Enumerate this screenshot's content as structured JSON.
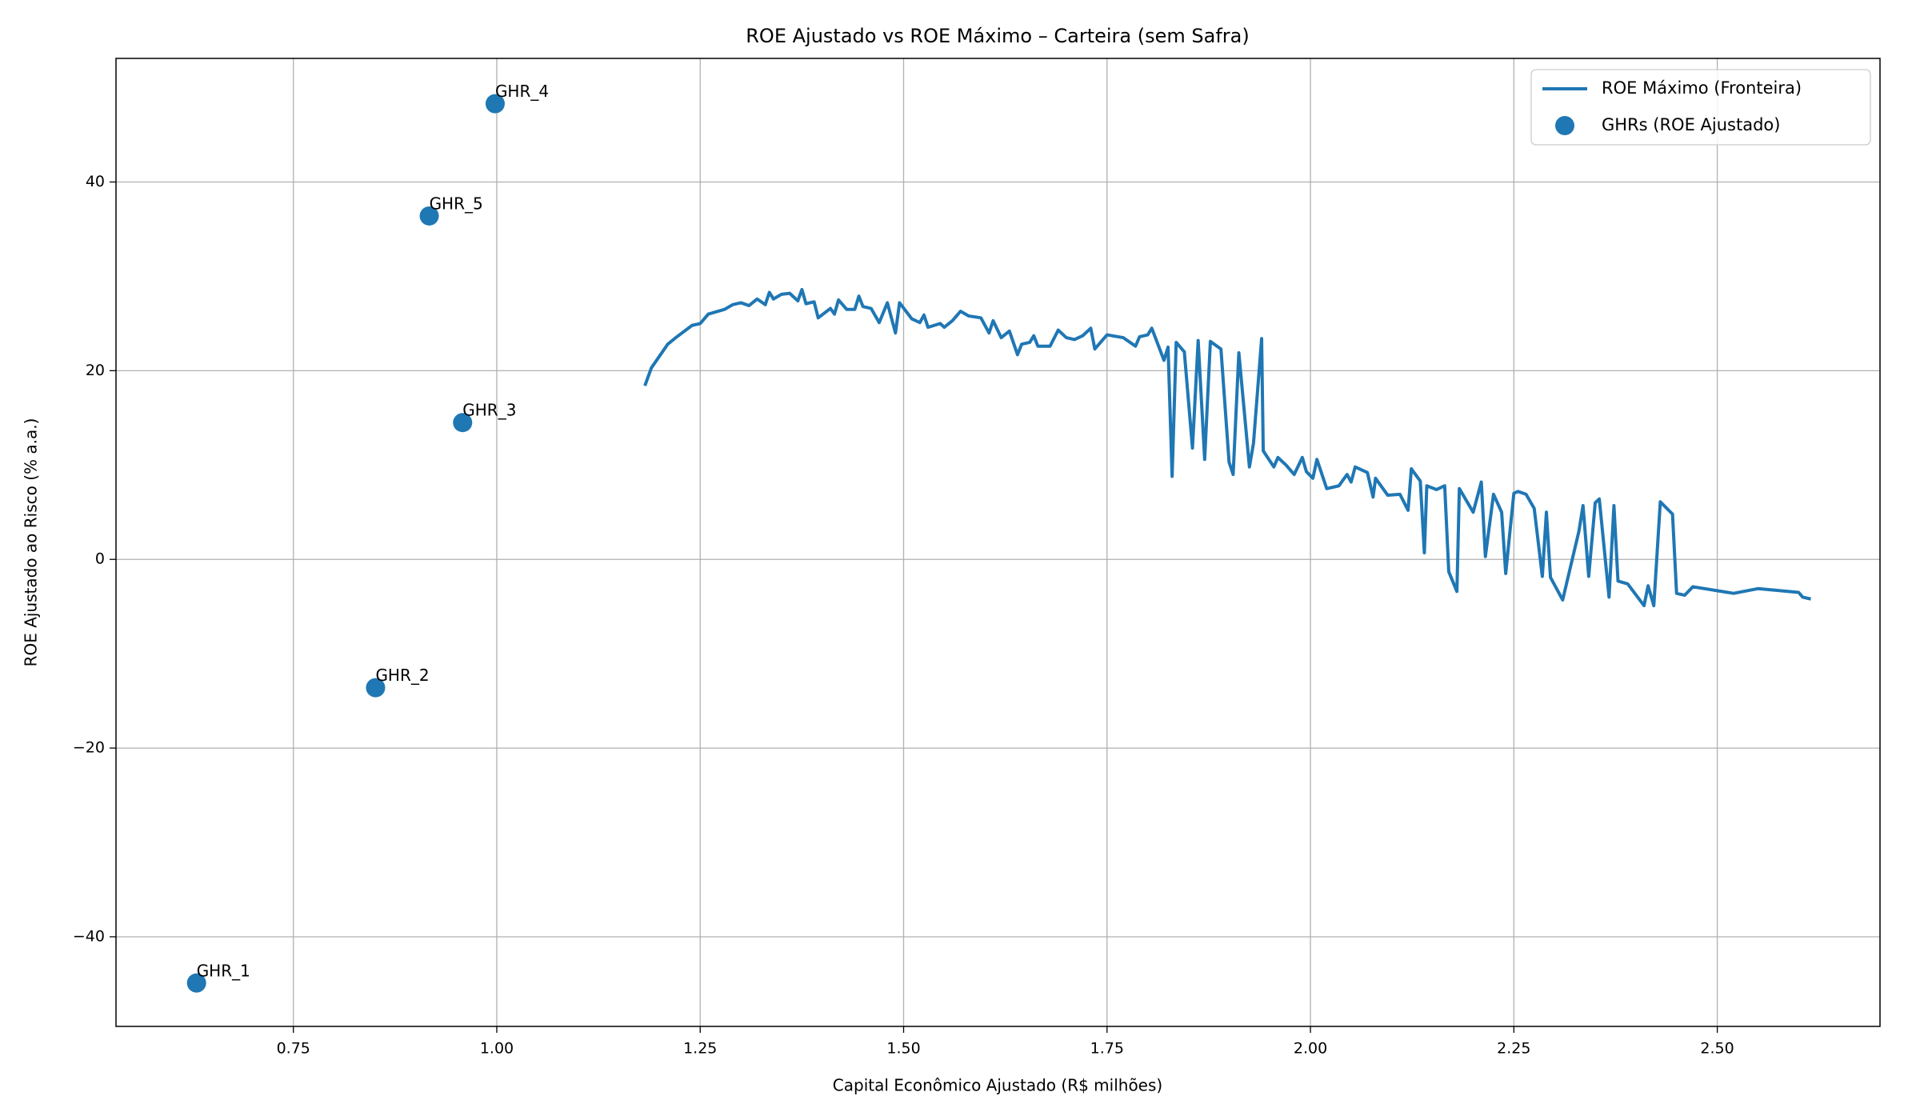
{
  "chart_data": {
    "type": "scatter",
    "title": "ROE Ajustado vs ROE Máximo – Carteira (sem Safra)",
    "xlabel": "Capital Econômico Ajustado (R$ milhões)",
    "ylabel": "ROE Ajustado ao Risco (% a.a.)",
    "xlim": [
      0.532,
      2.7
    ],
    "ylim": [
      -49.5,
      53.1
    ],
    "xticks": [
      {
        "value": 0.75,
        "label": "0.75"
      },
      {
        "value": 1,
        "label": "1.00"
      },
      {
        "value": 1.25,
        "label": "1.25"
      },
      {
        "value": 1.5,
        "label": "1.50"
      },
      {
        "value": 1.75,
        "label": "1.75"
      },
      {
        "value": 2,
        "label": "2.00"
      },
      {
        "value": 2.25,
        "label": "2.25"
      },
      {
        "value": 2.5,
        "label": "2.50"
      }
    ],
    "yticks": [
      {
        "value": -40,
        "label": "−40"
      },
      {
        "value": -20,
        "label": "−20"
      },
      0,
      20,
      40
    ],
    "grid": true,
    "legend": "upper right",
    "series": [
      {
        "name": "ROE Máximo (Fronteira)",
        "type": "line",
        "color": "#1f77b4",
        "x": [
          1.182,
          1.19,
          1.21,
          1.22,
          1.24,
          1.25,
          1.26,
          1.28,
          1.29,
          1.3,
          1.31,
          1.32,
          1.33,
          1.335,
          1.34,
          1.35,
          1.36,
          1.37,
          1.375,
          1.38,
          1.39,
          1.395,
          1.41,
          1.415,
          1.42,
          1.43,
          1.44,
          1.445,
          1.45,
          1.46,
          1.47,
          1.48,
          1.49,
          1.495,
          1.51,
          1.52,
          1.525,
          1.53,
          1.545,
          1.55,
          1.56,
          1.57,
          1.58,
          1.595,
          1.605,
          1.61,
          1.62,
          1.63,
          1.64,
          1.645,
          1.655,
          1.66,
          1.665,
          1.68,
          1.69,
          1.7,
          1.71,
          1.72,
          1.73,
          1.735,
          1.75,
          1.77,
          1.785,
          1.79,
          1.8,
          1.805,
          1.82,
          1.825,
          1.83,
          1.835,
          1.845,
          1.855,
          1.862,
          1.87,
          1.877,
          1.89,
          1.9,
          1.905,
          1.912,
          1.925,
          1.93,
          1.94,
          1.942,
          1.955,
          1.96,
          1.97,
          1.98,
          1.99,
          1.995,
          2.003,
          2.008,
          2.02,
          2.035,
          2.045,
          2.05,
          2.055,
          2.07,
          2.077,
          2.08,
          2.095,
          2.11,
          2.12,
          2.124,
          2.135,
          2.14,
          2.143,
          2.155,
          2.165,
          2.17,
          2.18,
          2.183,
          2.2,
          2.21,
          2.215,
          2.225,
          2.235,
          2.24,
          2.245,
          2.25,
          2.255,
          2.265,
          2.275,
          2.285,
          2.29,
          2.295,
          2.31,
          2.33,
          2.335,
          2.342,
          2.35,
          2.355,
          2.367,
          2.373,
          2.378,
          2.39,
          2.41,
          2.415,
          2.422,
          2.43,
          2.445,
          2.45,
          2.46,
          2.47,
          2.52,
          2.55,
          2.6,
          2.605,
          2.615
        ],
        "values": [
          18.4,
          20.3,
          22.8,
          23.5,
          24.8,
          25,
          26,
          26.5,
          27,
          27.2,
          26.9,
          27.6,
          27,
          28.3,
          27.6,
          28.1,
          28.2,
          27.4,
          28.6,
          27.1,
          27.3,
          25.6,
          26.6,
          26,
          27.5,
          26.5,
          26.5,
          27.9,
          26.8,
          26.6,
          25.1,
          27.2,
          24,
          27.2,
          25.5,
          25.1,
          25.9,
          24.6,
          25,
          24.6,
          25.3,
          26.3,
          25.8,
          25.6,
          24,
          25.3,
          23.5,
          24.2,
          21.7,
          22.8,
          23,
          23.7,
          22.6,
          22.6,
          24.3,
          23.5,
          23.3,
          23.7,
          24.5,
          22.3,
          23.8,
          23.5,
          22.6,
          23.6,
          23.8,
          24.5,
          21.1,
          22.5,
          8.8,
          23,
          22,
          11.8,
          23.2,
          10.6,
          23.1,
          22.3,
          10.3,
          9,
          21.9,
          9.8,
          12.3,
          23.4,
          11.5,
          9.8,
          10.8,
          10,
          9,
          10.8,
          9.3,
          8.6,
          10.6,
          7.5,
          7.8,
          9,
          8.2,
          9.8,
          9.2,
          6.6,
          8.6,
          6.8,
          6.9,
          5.2,
          9.6,
          8.3,
          0.7,
          7.8,
          7.4,
          7.8,
          -1.3,
          -3.4,
          7.5,
          5,
          8.2,
          0.3,
          6.9,
          5,
          -1.5,
          2.8,
          7,
          7.2,
          6.9,
          5.4,
          -1.8,
          5,
          -1.9,
          -4.3,
          3,
          5.7,
          -1.8,
          6,
          6.4,
          -4,
          5.7,
          -2.3,
          -2.6,
          -4.9,
          -2.8,
          -4.9,
          6.1,
          4.8,
          -3.6,
          -3.8,
          -2.9,
          -3.6,
          -3.1,
          -3.5,
          -4,
          -4.2
        ]
      },
      {
        "name": "GHRs (ROE Ajustado)",
        "type": "scatter",
        "color": "#1f77b4",
        "x": [
          0.631,
          0.851,
          0.958,
          0.998,
          0.917
        ],
        "values": [
          -44.9,
          -13.6,
          14.5,
          48.3,
          36.4
        ],
        "labels": [
          "GHR_1",
          "GHR_2",
          "GHR_3",
          "GHR_4",
          "GHR_5"
        ]
      }
    ]
  }
}
